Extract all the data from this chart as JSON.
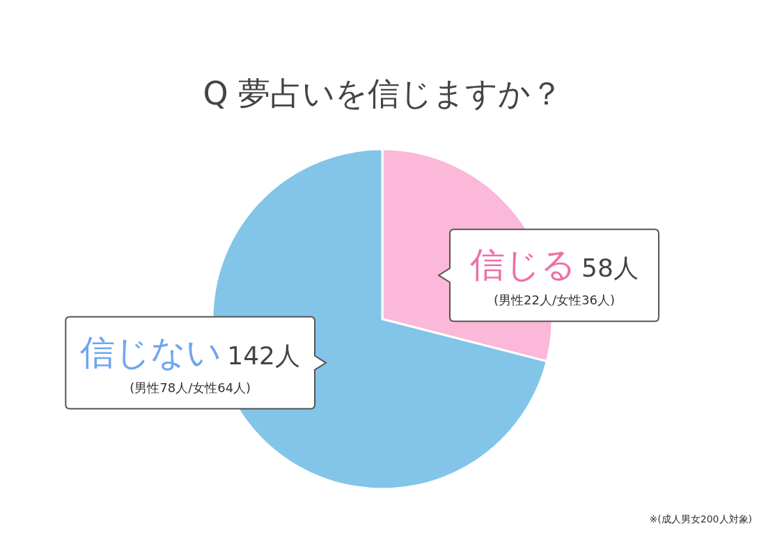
{
  "chart_data": {
    "type": "pie",
    "title": "Q 夢占いを信じますか？",
    "categories": [
      "信じる",
      "信じない"
    ],
    "values": [
      58,
      142
    ],
    "colors": [
      "#fbb8d8",
      "#82c5e8"
    ],
    "value_labels": [
      "58人",
      "142人"
    ],
    "annotations": [
      "(男性22人/女性36人)",
      "(男性78人/女性64人)",
      "※(成人男女200人対象)"
    ]
  }
}
